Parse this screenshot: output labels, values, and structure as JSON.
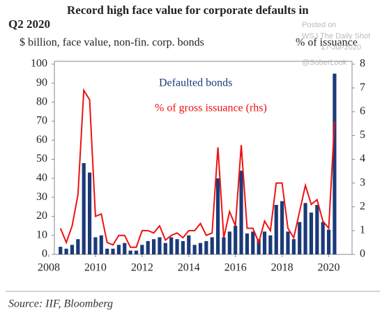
{
  "chart_data": {
    "type": "bar_line",
    "title": [
      "Record high face value for corporate defaults in",
      "Q2 2020"
    ],
    "ylabel": "$ billion, face value, non-fin. corp. bonds",
    "y2label": "% of issuance",
    "source": "Source: IIF, Bloomberg",
    "watermark": [
      "Posted on",
      "WSJ The Daily Shot",
      "17-Jul-2020",
      "@SoberLook"
    ],
    "x": [
      2008.5,
      2008.75,
      2009,
      2009.25,
      2009.5,
      2009.75,
      2010,
      2010.25,
      2010.5,
      2010.75,
      2011,
      2011.25,
      2011.5,
      2011.75,
      2012,
      2012.25,
      2012.5,
      2012.75,
      2013,
      2013.25,
      2013.5,
      2013.75,
      2014,
      2014.25,
      2014.5,
      2014.75,
      2015,
      2015.25,
      2015.5,
      2015.75,
      2016,
      2016.25,
      2016.5,
      2016.75,
      2017,
      2017.25,
      2017.5,
      2017.75,
      2018,
      2018.25,
      2018.5,
      2018.75,
      2019,
      2019.25,
      2019.5,
      2019.75,
      2020,
      2020.25
    ],
    "series": [
      {
        "name": "Defaulted bonds",
        "color": "#1b3a78",
        "kind": "bar",
        "values": [
          4,
          3,
          5,
          8,
          48,
          43,
          9,
          10,
          3,
          3,
          5,
          6,
          2,
          2,
          5,
          7,
          8,
          9,
          6,
          9,
          8,
          7,
          10,
          5,
          6,
          7,
          9,
          40,
          9,
          12,
          15,
          44,
          11,
          12,
          8,
          12,
          10,
          26,
          28,
          12,
          8,
          17,
          27,
          22,
          26,
          17,
          13,
          95
        ]
      },
      {
        "name": "% of gross issuance (rhs)",
        "color": "#ee1111",
        "kind": "line",
        "axis": "y2",
        "values": [
          1.1,
          0.5,
          1.2,
          2.5,
          6.9,
          6.5,
          1.6,
          1.7,
          0.5,
          0.4,
          0.8,
          0.8,
          0.3,
          0.3,
          1.0,
          1.0,
          0.9,
          1.2,
          0.6,
          0.8,
          0.9,
          0.7,
          1.0,
          1.0,
          1.3,
          0.8,
          0.9,
          4.5,
          0.7,
          1.8,
          1.2,
          4.6,
          1.1,
          1.1,
          0.5,
          1.4,
          1.0,
          3.0,
          3.0,
          1.1,
          0.7,
          1.8,
          2.9,
          2.1,
          2.3,
          1.4,
          1.1,
          5.6
        ]
      }
    ],
    "xlim": [
      2008,
      2021
    ],
    "xticks": [
      2008,
      2010,
      2012,
      2014,
      2016,
      2018,
      2020
    ],
    "ylim": [
      0,
      100
    ],
    "yticks": [
      0,
      10,
      20,
      30,
      40,
      50,
      60,
      70,
      80,
      90,
      100
    ],
    "y2lim": [
      0,
      8
    ],
    "y2ticks": [
      0,
      1,
      2,
      3,
      4,
      5,
      6,
      7,
      8
    ]
  }
}
